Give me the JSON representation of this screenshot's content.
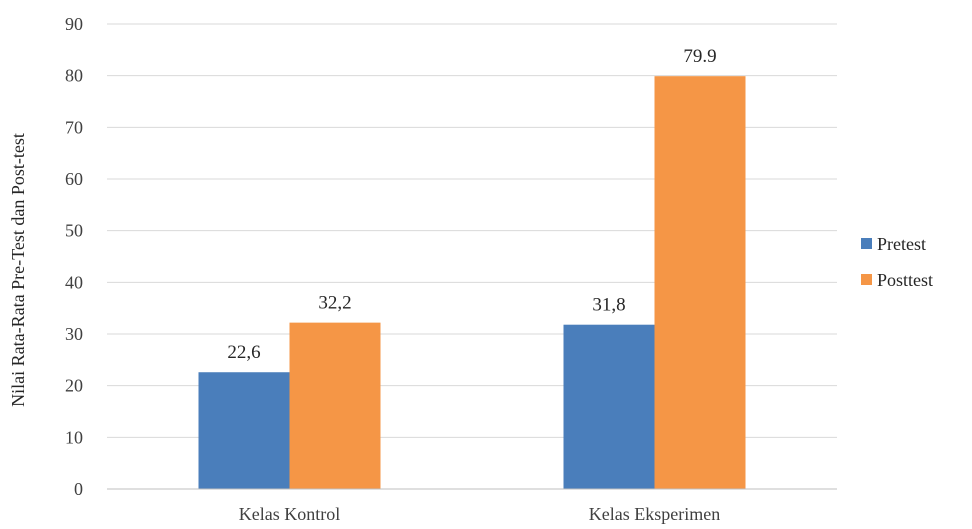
{
  "chart_data": {
    "type": "bar",
    "title": "",
    "xlabel": "",
    "ylabel": "Nilai Rata-Rata Pre-Test dan Post-test",
    "categories": [
      "Kelas Kontrol",
      "Kelas Eksperimen"
    ],
    "series": [
      {
        "name": "Pretest",
        "values": [
          22.6,
          31.8
        ],
        "labels": [
          "22,6",
          "31,8"
        ],
        "color": "#4a7ebb"
      },
      {
        "name": "Posttest",
        "values": [
          32.2,
          79.9
        ],
        "labels": [
          "32,2",
          "79.9"
        ],
        "color": "#f59646"
      }
    ],
    "ylim": [
      0,
      90
    ],
    "yticks": [
      "0",
      "10",
      "20",
      "30",
      "40",
      "50",
      "60",
      "70",
      "80",
      "90"
    ],
    "grid": true,
    "legend_position": "right"
  }
}
